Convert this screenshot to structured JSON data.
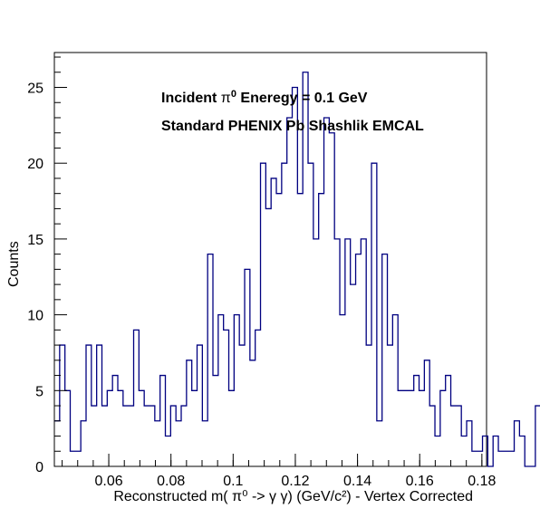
{
  "chart_data": {
    "type": "histogram",
    "title": "",
    "xlabel": "Reconstructed m( π⁰ -> γ γ) (GeV/c²) - Vertex Corrected",
    "ylabel": "Counts",
    "xlim": [
      0.0425,
      0.1815
    ],
    "ylim": [
      0,
      27.3
    ],
    "bin_width": 0.0017,
    "x_ticks": [
      0.06,
      0.08,
      0.1,
      0.12,
      0.14,
      0.16,
      0.18
    ],
    "x_tick_labels": [
      "0.06",
      "0.08",
      "0.1",
      "0.12",
      "0.14",
      "0.16",
      "0.18"
    ],
    "y_ticks": [
      0,
      5,
      10,
      15,
      20,
      25
    ],
    "y_tick_labels": [
      "0",
      "5",
      "10",
      "15",
      "20",
      "25"
    ],
    "values": [
      3,
      8,
      5,
      1,
      1,
      3,
      8,
      4,
      8,
      4,
      5,
      6,
      5,
      4,
      4,
      9,
      5,
      4,
      4,
      3,
      6,
      2,
      4,
      3,
      4,
      7,
      5,
      8,
      3,
      14,
      6,
      10,
      9,
      5,
      10,
      8,
      13,
      7,
      9,
      20,
      17,
      19,
      18,
      20,
      23,
      25,
      18,
      26,
      20,
      15,
      18,
      23,
      22,
      15,
      10,
      15,
      12,
      14,
      15,
      8,
      20,
      3,
      14,
      8,
      10,
      5,
      5,
      5,
      6,
      5,
      7,
      4,
      2,
      5,
      6,
      4,
      4,
      2,
      3,
      1,
      1,
      2,
      0,
      2,
      1,
      1,
      1,
      3,
      2,
      0,
      0,
      4,
      3,
      1,
      1,
      1,
      2,
      0,
      1,
      1
    ],
    "line_color": "#000080",
    "annotations": [
      {
        "prefix": "Incident  ",
        "symbol": "π",
        "sup": "0",
        "suffix": " Eneregy = 0.1 GeV"
      },
      {
        "text": "Standard PHENIX Pb Shashlik EMCAL"
      }
    ]
  },
  "colors": {
    "axis": "#000000",
    "series": "#000080",
    "background": "#ffffff"
  }
}
